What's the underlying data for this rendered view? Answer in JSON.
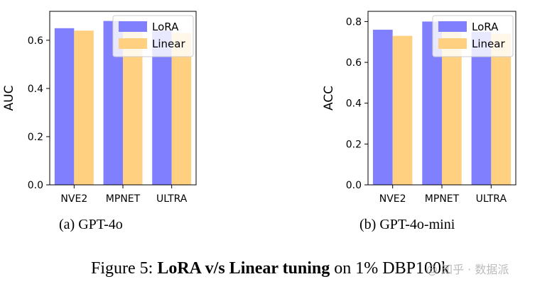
{
  "colors": {
    "lora": "#8080ff",
    "linear": "#ffd080"
  },
  "chart_data": [
    {
      "type": "bar",
      "subcaption": "(a) GPT-4o",
      "ylabel": "AUC",
      "categories": [
        "NVE2",
        "MPNET",
        "ULTRA"
      ],
      "series": [
        {
          "name": "LoRA",
          "values": [
            0.65,
            0.68,
            0.64
          ]
        },
        {
          "name": "Linear",
          "values": [
            0.64,
            0.66,
            0.63
          ]
        }
      ],
      "ylim": [
        0,
        0.72
      ],
      "yticks": [
        "0.0",
        "0.2",
        "0.4",
        "0.6"
      ],
      "legend": "top-right",
      "grid": false
    },
    {
      "type": "bar",
      "subcaption": "(b) GPT-4o-mini",
      "ylabel": "ACC",
      "categories": [
        "NVE2",
        "MPNET",
        "ULTRA"
      ],
      "series": [
        {
          "name": "LoRA",
          "values": [
            0.76,
            0.8,
            0.75
          ]
        },
        {
          "name": "Linear",
          "values": [
            0.73,
            0.75,
            0.74
          ]
        }
      ],
      "ylim": [
        0,
        0.85
      ],
      "yticks": [
        "0.0",
        "0.2",
        "0.4",
        "0.6",
        "0.8"
      ],
      "legend": "top-right",
      "grid": false
    }
  ],
  "caption": {
    "prefix": "Figure 5: ",
    "bold": "LoRA v/s Linear tuning",
    "suffix": " on 1% DBP100k"
  },
  "watermark": "@ 知乎 · 数据派"
}
